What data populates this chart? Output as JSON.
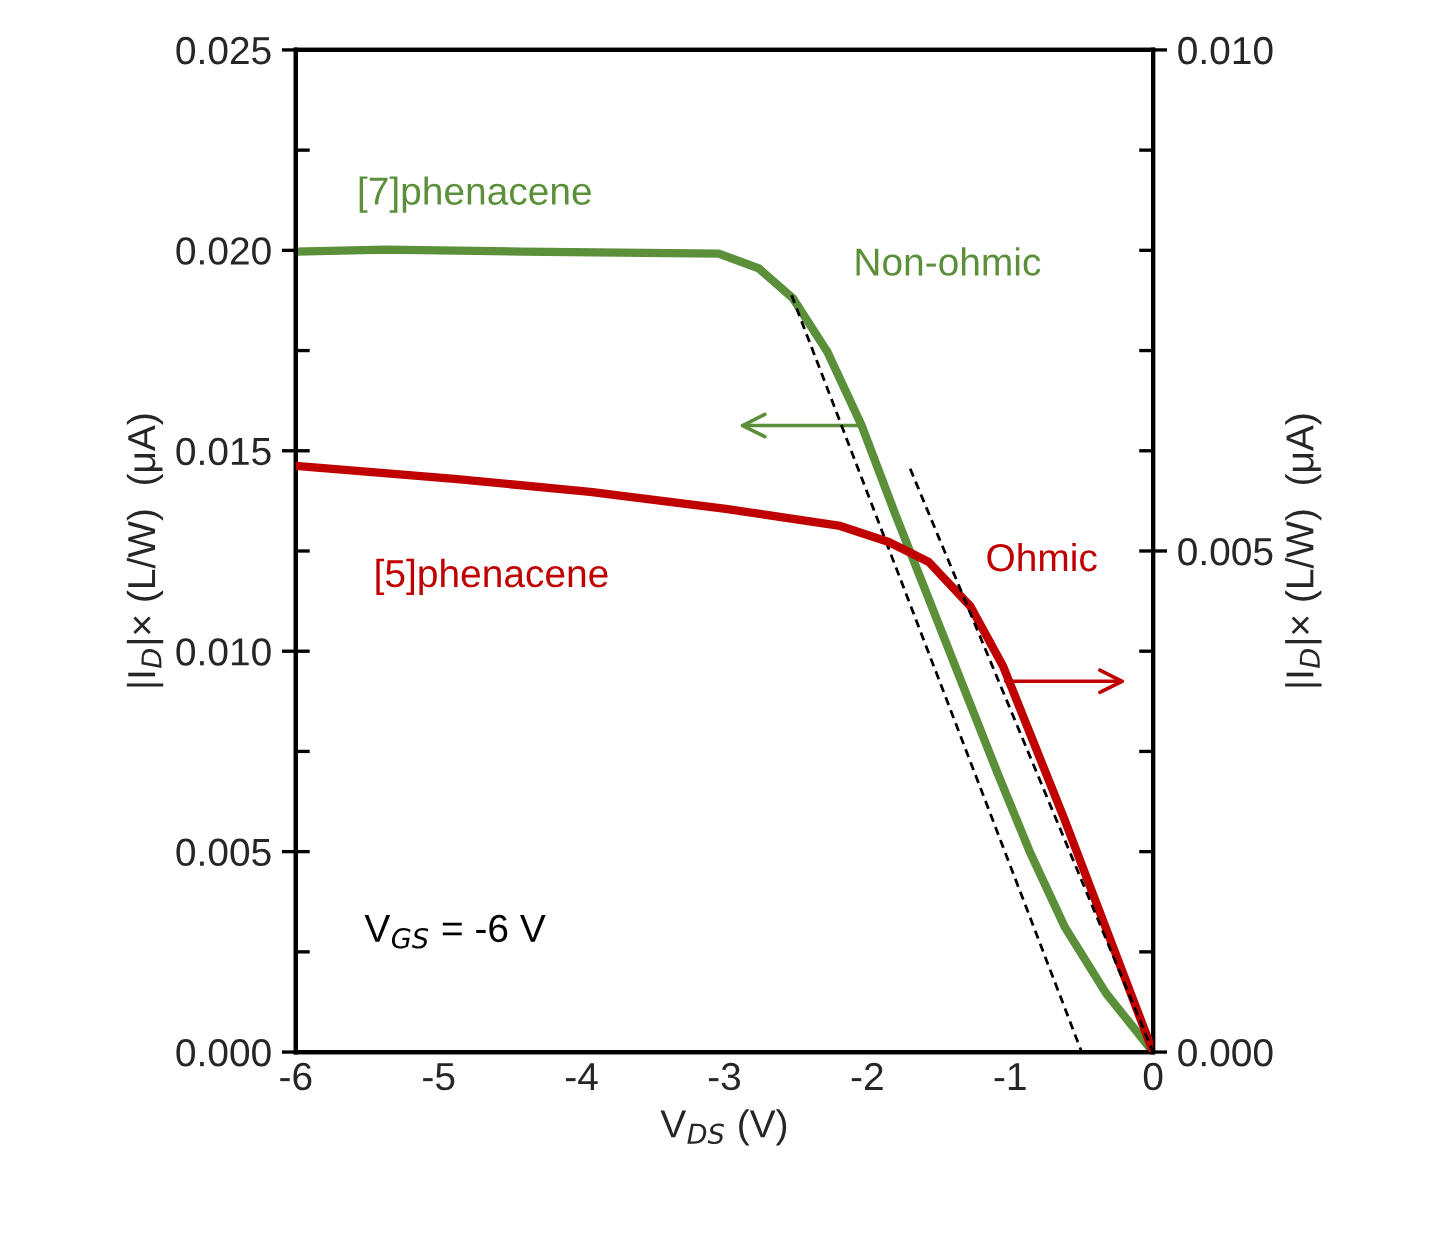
{
  "chart_data": {
    "type": "line",
    "xlabel": "V$_{DS}$ (V)",
    "ylabel": "|I$_{D}$|× (L/W)  (μA)",
    "y2label": "|I$_{D}$|× (L/W)  (μA)",
    "series": [
      {
        "name": "[7]phenacene",
        "color": "#5b8f3a",
        "x": [
          -6,
          -5.37,
          -4.42,
          -3.04,
          -2.76,
          -2.52,
          -2.28,
          -2.04,
          -1.81,
          -1.57,
          -1.33,
          -1.09,
          -0.86,
          -0.62,
          -0.33,
          0
        ],
        "values": [
          0.01997,
          0.02002,
          0.01997,
          0.01992,
          0.01955,
          0.0188,
          0.01747,
          0.01563,
          0.01347,
          0.0113,
          0.00913,
          0.00697,
          0.00497,
          0.00313,
          0.00147,
          0
        ]
      },
      {
        "name": "[5]phenacene",
        "color": "#c00000",
        "axis": "y2",
        "x": [
          -6,
          -4.89,
          -3.94,
          -2.99,
          -2.19,
          -1.85,
          -1.57,
          -1.28,
          -1.05,
          -0.62,
          0
        ],
        "values": [
          0.00585,
          0.00572,
          0.00559,
          0.00542,
          0.00525,
          0.00509,
          0.00489,
          0.00445,
          0.00385,
          0.00232,
          0
        ]
      },
      {
        "type": "line",
        "color": "#000000",
        "line_style": "dashed",
        "x": [
          -2.53,
          -0.5
        ],
        "values": [
          0.01888,
          0
        ]
      },
      {
        "type": "line",
        "color": "#000000",
        "line_style": "dashed",
        "axis": "y2",
        "x": [
          -1.7,
          0
        ],
        "values": [
          0.00582,
          0
        ]
      }
    ],
    "annotations": [
      "Non-ohmic",
      "Ohmic",
      "V$_{GS}$ = -6 V"
    ],
    "xlim": [
      -6,
      0
    ],
    "xticks": [
      -6,
      -5,
      -4,
      -3,
      -2,
      -1,
      0
    ],
    "ylim": [
      0,
      0.025
    ],
    "yticks": [
      {
        "value": 0,
        "label": "0.000"
      },
      {
        "value": 0.005,
        "label": "0.005"
      },
      {
        "value": 0.01,
        "label": "0.010"
      },
      {
        "value": 0.015,
        "label": "0.015"
      },
      {
        "value": 0.02,
        "label": "0.020"
      },
      {
        "value": 0.025,
        "label": "0.025"
      }
    ],
    "y2lim": [
      0,
      0.01
    ],
    "y2ticks": [
      {
        "value": 0,
        "label": "0.000"
      },
      {
        "value": 0.005,
        "label": "0.005"
      },
      {
        "value": 0.01,
        "label": "0.010"
      }
    ],
    "grid": false,
    "legend": false
  }
}
